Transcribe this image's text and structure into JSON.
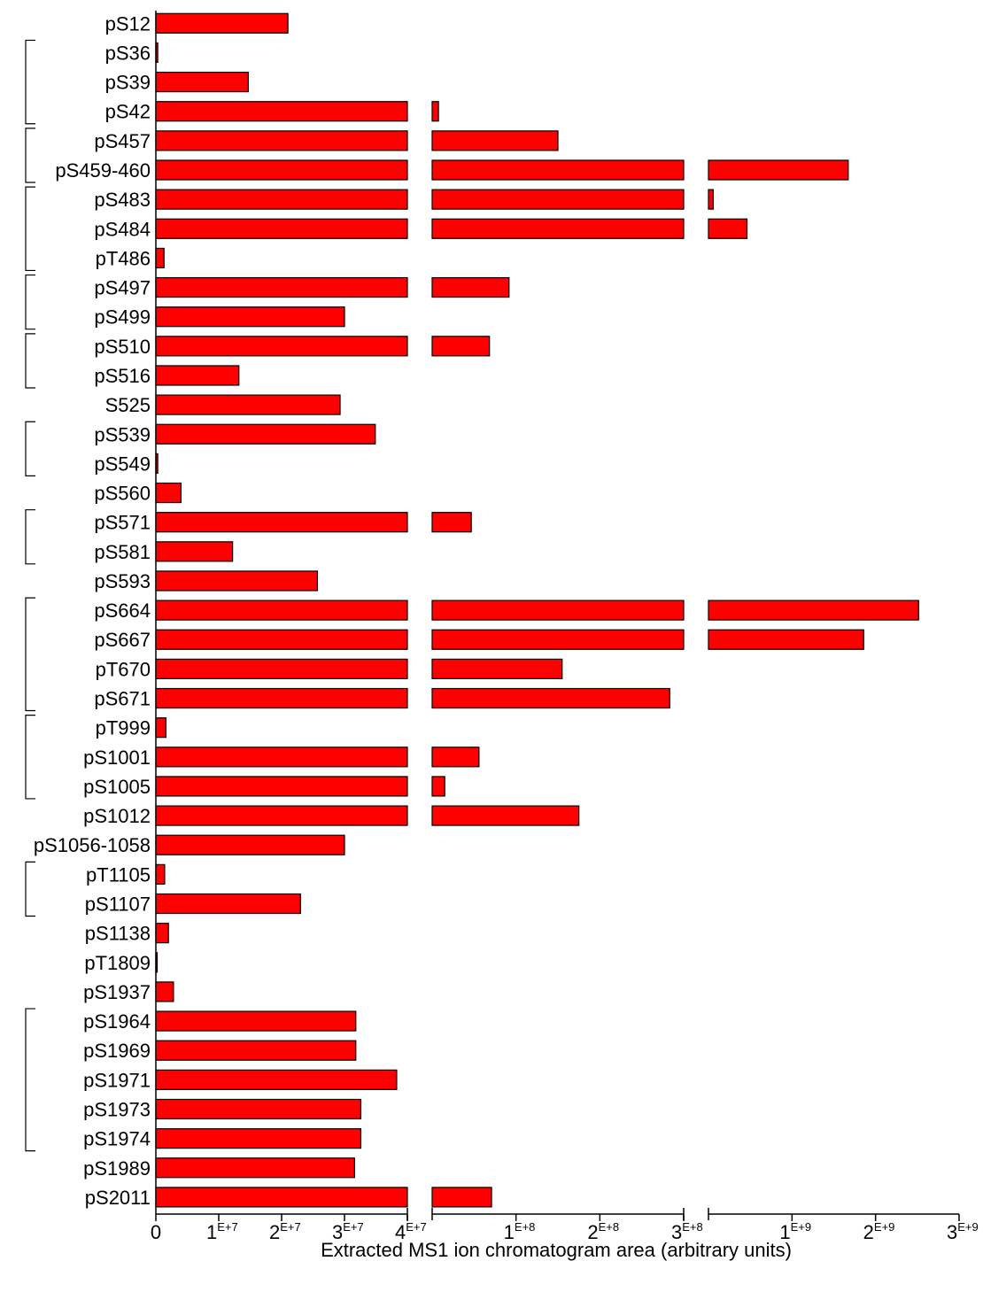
{
  "chart_data": {
    "type": "bar",
    "orientation": "horizontal",
    "xlabel": "Extracted MS1 ion chromatogram area (arbitrary units)",
    "axis_break": true,
    "bar_color": "#ff0000",
    "segments": [
      {
        "range": [
          0,
          40000000
        ],
        "ticks": [
          {
            "mantissa": "0",
            "exp": ""
          },
          {
            "mantissa": "1",
            "exp": "E+7"
          },
          {
            "mantissa": "2",
            "exp": "E+7"
          },
          {
            "mantissa": "3",
            "exp": "E+7"
          },
          {
            "mantissa": "4",
            "exp": "E+7"
          }
        ]
      },
      {
        "range": [
          40000000,
          400000000
        ],
        "ticks": [
          {
            "mantissa": "1",
            "exp": "E+8"
          },
          {
            "mantissa": "2",
            "exp": "E+8"
          },
          {
            "mantissa": "3",
            "exp": "E+8"
          }
        ]
      },
      {
        "range": [
          400000000,
          3000000000
        ],
        "ticks": [
          {
            "mantissa": "1",
            "exp": "E+9"
          },
          {
            "mantissa": "2",
            "exp": "E+9"
          },
          {
            "mantissa": "3",
            "exp": "E+9"
          }
        ]
      }
    ],
    "categories": [
      "pS12",
      "pS36",
      "pS39",
      "pS42",
      "pS457",
      "pS459-460",
      "pS483",
      "pS484",
      "pT486",
      "pS497",
      "pS499",
      "pS510",
      "pS516",
      "S525",
      "pS539",
      "pS549",
      "pS560",
      "pS571",
      "pS581",
      "pS593",
      "pS664",
      "pS667",
      "pT670",
      "pS671",
      "pT999",
      "pS1001",
      "pS1005",
      "pS1012",
      "pS1056-1058",
      "pT1105",
      "pS1107",
      "pS1138",
      "pT1809",
      "pS1937",
      "pS1964",
      "pS1969",
      "pS1971",
      "pS1973",
      "pS1974",
      "pS1989",
      "pS2011"
    ],
    "values": [
      21000000,
      300000,
      14700000,
      49000000,
      220000000,
      1850000000,
      450000000,
      800000000,
      1300000,
      150000000,
      30000000,
      122000000,
      13200000,
      29300000,
      34900000,
      300000,
      4000000,
      96000000,
      12200000,
      25700000,
      2580000000,
      2010000000,
      226000000,
      380000000,
      1600000,
      107000000,
      58000000,
      250000000,
      30000000,
      1400000,
      23000000,
      2000000,
      50000,
      2800000,
      31800000,
      31800000,
      38300000,
      32600000,
      32600000,
      31600000,
      125000000
    ],
    "brackets": [
      [
        1,
        3
      ],
      [
        4,
        5
      ],
      [
        6,
        8
      ],
      [
        9,
        10
      ],
      [
        11,
        12
      ],
      [
        14,
        15
      ],
      [
        17,
        18
      ],
      [
        20,
        23
      ],
      [
        24,
        26
      ],
      [
        29,
        30
      ],
      [
        34,
        38
      ]
    ]
  }
}
